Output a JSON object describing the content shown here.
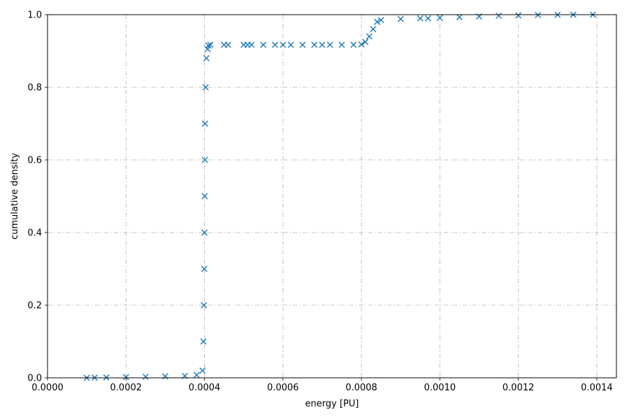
{
  "chart_data": {
    "type": "scatter",
    "title": "",
    "xlabel": "energy [PU]",
    "ylabel": "cumulative density",
    "xlim": [
      0.0,
      0.00145
    ],
    "ylim": [
      0.0,
      1.0
    ],
    "x_ticks": [
      0.0,
      0.0002,
      0.0004,
      0.0006,
      0.0008,
      0.001,
      0.0012,
      0.0014
    ],
    "x_tick_labels": [
      "0.0000",
      "0.0002",
      "0.0004",
      "0.0006",
      "0.0008",
      "0.0010",
      "0.0012",
      "0.0014"
    ],
    "y_ticks": [
      0.0,
      0.2,
      0.4,
      0.6,
      0.8,
      1.0
    ],
    "y_tick_labels": [
      "0.0",
      "0.2",
      "0.4",
      "0.6",
      "0.8",
      "1.0"
    ],
    "grid": true,
    "marker": "x",
    "color": "#1f77b4",
    "series": [
      {
        "points": [
          [
            0.0001,
            0.0
          ],
          [
            0.00012,
            0.0005
          ],
          [
            0.00015,
            0.001
          ],
          [
            0.0002,
            0.002
          ],
          [
            0.00025,
            0.003
          ],
          [
            0.0003,
            0.004
          ],
          [
            0.00035,
            0.005
          ],
          [
            0.00038,
            0.008
          ],
          [
            0.000395,
            0.02
          ],
          [
            0.0003975,
            0.1
          ],
          [
            0.0003985,
            0.2
          ],
          [
            0.0003995,
            0.3
          ],
          [
            0.0004,
            0.4
          ],
          [
            0.0004005,
            0.5
          ],
          [
            0.000401,
            0.6
          ],
          [
            0.0004015,
            0.7
          ],
          [
            0.000403,
            0.8
          ],
          [
            0.000405,
            0.88
          ],
          [
            0.000408,
            0.905
          ],
          [
            0.00041,
            0.915
          ],
          [
            0.000415,
            0.917
          ],
          [
            0.00045,
            0.917
          ],
          [
            0.00046,
            0.917
          ],
          [
            0.0005,
            0.917
          ],
          [
            0.00051,
            0.917
          ],
          [
            0.00052,
            0.917
          ],
          [
            0.00055,
            0.917
          ],
          [
            0.00058,
            0.917
          ],
          [
            0.0006,
            0.917
          ],
          [
            0.00062,
            0.917
          ],
          [
            0.00065,
            0.917
          ],
          [
            0.00068,
            0.917
          ],
          [
            0.0007,
            0.917
          ],
          [
            0.00072,
            0.917
          ],
          [
            0.00075,
            0.917
          ],
          [
            0.00078,
            0.917
          ],
          [
            0.0008,
            0.918
          ],
          [
            0.00081,
            0.925
          ],
          [
            0.00082,
            0.94
          ],
          [
            0.00083,
            0.96
          ],
          [
            0.00084,
            0.98
          ],
          [
            0.00085,
            0.985
          ],
          [
            0.0009,
            0.988
          ],
          [
            0.00095,
            0.99
          ],
          [
            0.00097,
            0.99
          ],
          [
            0.001,
            0.991
          ],
          [
            0.00105,
            0.993
          ],
          [
            0.0011,
            0.995
          ],
          [
            0.00115,
            0.997
          ],
          [
            0.0012,
            0.998
          ],
          [
            0.00125,
            0.999
          ],
          [
            0.0013,
            0.9995
          ],
          [
            0.00134,
            1.0
          ],
          [
            0.00139,
            1.0
          ]
        ]
      }
    ]
  }
}
